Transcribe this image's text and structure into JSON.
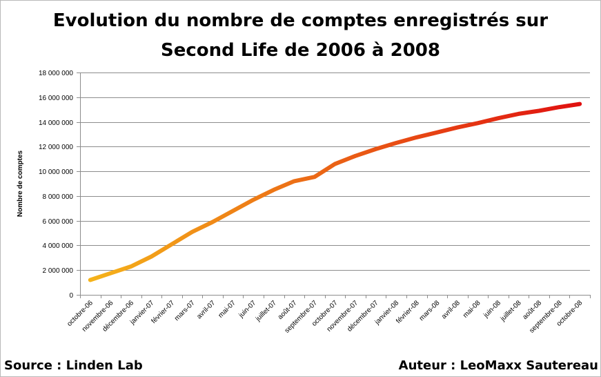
{
  "chart_data": {
    "type": "line",
    "title_line1": "Evolution du nombre de comptes enregistrés sur",
    "title_line2": "Second Life de 2006 à 2008",
    "xlabel": "",
    "ylabel": "Nombre de comptes",
    "ylim": [
      0,
      18000000
    ],
    "ytick_values": [
      0,
      2000000,
      4000000,
      6000000,
      8000000,
      10000000,
      12000000,
      14000000,
      16000000,
      18000000
    ],
    "ytick_labels": [
      "0",
      "2 000 000",
      "4 000 000",
      "6 000 000",
      "8 000 000",
      "10 000 000",
      "12 000 000",
      "14 000 000",
      "16 000 000",
      "18 000 000"
    ],
    "grid": true,
    "legend": "none",
    "categories": [
      "octobre-06",
      "novembre-06",
      "décembre-06",
      "janvier-07",
      "février-07",
      "mars-07",
      "avril-07",
      "mai-07",
      "juin-07",
      "juillet-07",
      "août-07",
      "septembre-07",
      "octobre-07",
      "novembre-07",
      "décembre-07",
      "janvier-08",
      "février-08",
      "mars-08",
      "avril-08",
      "mai-08",
      "juin-08",
      "juillet-08",
      "août-08",
      "septembre-08",
      "octobre-08"
    ],
    "series": [
      {
        "values": [
          1200000,
          1750000,
          2300000,
          3100000,
          4100000,
          5100000,
          5900000,
          6800000,
          7700000,
          8500000,
          9200000,
          9550000,
          10600000,
          11250000,
          11800000,
          12300000,
          12750000,
          13150000,
          13550000,
          13900000,
          14300000,
          14650000,
          14900000,
          15200000,
          15450000
        ],
        "color_start": "#f5b31a",
        "color_end": "#e01010"
      }
    ]
  },
  "footer": {
    "source": "Source : Linden Lab",
    "author": "Auteur : LeoMaxx Sautereau"
  }
}
